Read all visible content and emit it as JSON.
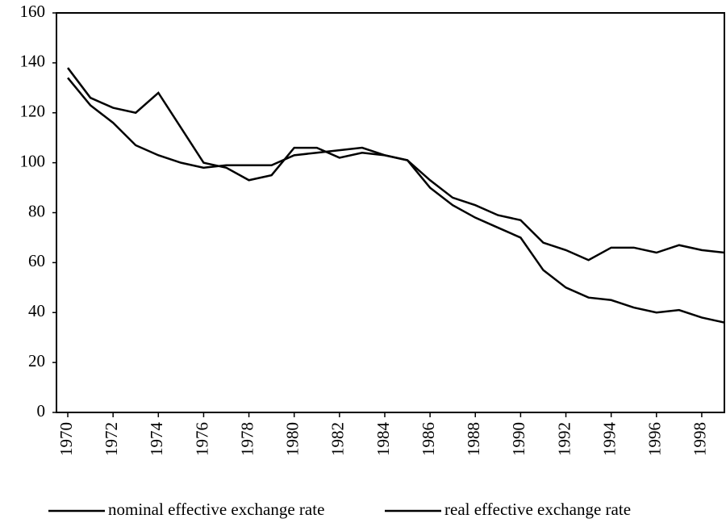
{
  "chart_data": {
    "type": "line",
    "x": [
      1970,
      1971,
      1972,
      1973,
      1974,
      1975,
      1976,
      1977,
      1978,
      1979,
      1980,
      1981,
      1982,
      1983,
      1984,
      1985,
      1986,
      1987,
      1988,
      1989,
      1990,
      1991,
      1992,
      1993,
      1994,
      1995,
      1996,
      1997,
      1998,
      1999
    ],
    "series": [
      {
        "name": "nominal effective exchange rate",
        "color": "#000000",
        "values": [
          134,
          123,
          116,
          107,
          103,
          100,
          98,
          99,
          99,
          99,
          103,
          104,
          105,
          106,
          103,
          101,
          90,
          83,
          78,
          74,
          70,
          57,
          50,
          46,
          45,
          42,
          40,
          41,
          38,
          36
        ]
      },
      {
        "name": "real effective exchange rate",
        "color": "#000000",
        "values": [
          138,
          126,
          122,
          120,
          128,
          114,
          100,
          98,
          93,
          95,
          106,
          106,
          102,
          104,
          103,
          101,
          93,
          86,
          83,
          79,
          77,
          68,
          65,
          61,
          66,
          66,
          64,
          67,
          65,
          64
        ]
      }
    ],
    "xlim": [
      1969.5,
      1999
    ],
    "xticks": [
      1970,
      1972,
      1974,
      1976,
      1978,
      1980,
      1982,
      1984,
      1986,
      1988,
      1990,
      1992,
      1994,
      1996,
      1998
    ],
    "ylim": [
      0,
      160
    ],
    "yticks": [
      0,
      20,
      40,
      60,
      80,
      100,
      120,
      140,
      160
    ],
    "grid": false,
    "legend": "bottom"
  }
}
